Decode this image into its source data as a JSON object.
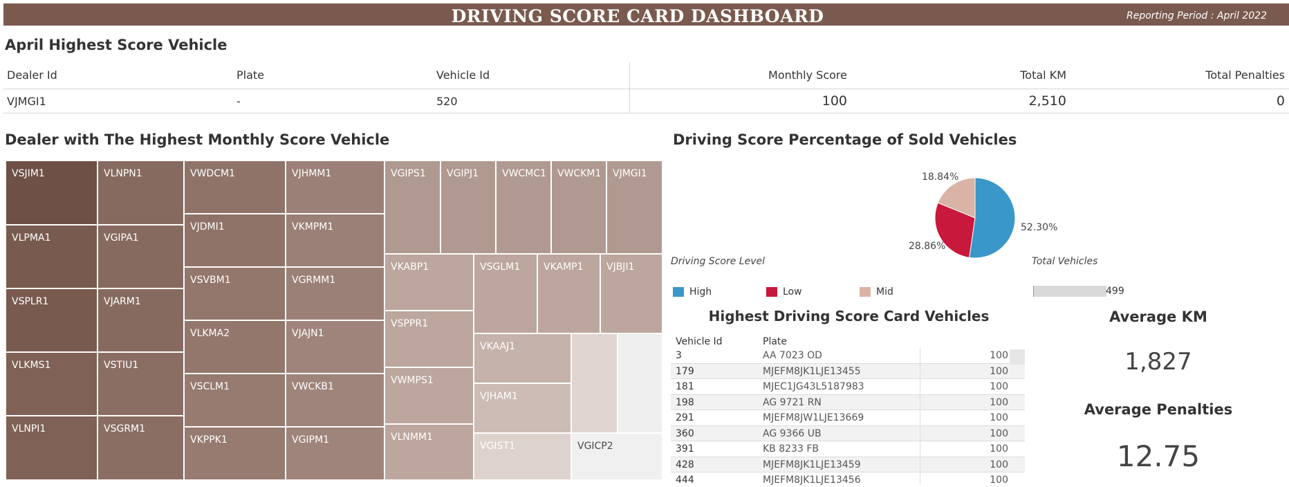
{
  "header": {
    "title": "DRIVING SCORE CARD DASHBOARD",
    "period": "Reporting Period : April 2022"
  },
  "top_section": {
    "title": "April Highest Score Vehicle",
    "columns": [
      "Dealer Id",
      "Plate",
      "Vehicle Id",
      "Monthly Score",
      "Total KM",
      "Total Penalties"
    ],
    "row": [
      "VJMGI1",
      "-",
      "520",
      "100",
      "2,510",
      "0"
    ]
  },
  "treemap": {
    "title": "Dealer with The Highest Monthly Score Vehicle",
    "labels": [
      "VSJIM1",
      "VLPMA1",
      "VSPLR1",
      "VLKMS1",
      "VLNPI1",
      "VLNPN1",
      "VGIPA1",
      "VJARM1",
      "VSTIU1",
      "VSGRM1",
      "VWDCM1",
      "VJDMI1",
      "VSVBM1",
      "VLKMA2",
      "VSCLM1",
      "VKPPK1",
      "VJHMM1",
      "VKMPM1",
      "VGRMM1",
      "VJAJN1",
      "VWCKB1",
      "VGIPM1",
      "VGIPS1",
      "VGIPJ1",
      "VWCMC1",
      "VWCKM1",
      "VJMGI1",
      "VKABP1",
      "VSGLM1",
      "VKAMP1",
      "VJBJI1",
      "VSPPR1",
      "VWMPS1",
      "VLNMM1",
      "VKAAJ1",
      "VJHAM1",
      "VGIST1",
      "VGICP2"
    ]
  },
  "chart_data": {
    "type": "pie",
    "title": "Driving Score Percentage of Sold Vehicles",
    "legend_title": "Driving Score Level",
    "slices": [
      {
        "name": "High",
        "value": 52.3,
        "label": "52.30%",
        "color": "#3a97c9"
      },
      {
        "name": "Low",
        "value": 28.86,
        "label": "28.86%",
        "color": "#c8183c"
      },
      {
        "name": "Mid",
        "value": 18.84,
        "label": "18.84%",
        "color": "#d9b3a6"
      }
    ]
  },
  "total_vehicles": {
    "title": "Total Vehicles",
    "value": "499"
  },
  "vehicle_list": {
    "title": "Highest Driving Score Card Vehicles",
    "columns": [
      "Vehicle Id",
      "Plate"
    ],
    "rows": [
      [
        "3",
        "AA 7023 OD",
        "100"
      ],
      [
        "179",
        "MJEFM8JK1LJE13455",
        "100"
      ],
      [
        "181",
        "MJEC1JG43L5187983",
        "100"
      ],
      [
        "198",
        "AG 9721 RN",
        "100"
      ],
      [
        "291",
        "MJEFM8JW1LJE13669",
        "100"
      ],
      [
        "360",
        "AG 9366 UB",
        "100"
      ],
      [
        "391",
        "KB 8233 FB",
        "100"
      ],
      [
        "428",
        "MJEFM8JK1LJE13459",
        "100"
      ],
      [
        "444",
        "MJEFM8JK1LJE13456",
        "100"
      ]
    ]
  },
  "kpis": {
    "avg_km_title": "Average KM",
    "avg_km": "1,827",
    "avg_pen_title": "Average Penalties",
    "avg_pen": "12.75"
  },
  "colors": {
    "brown": "#7a5a4e",
    "high": "#3a97c9",
    "low": "#c8183c",
    "mid": "#d9b3a6"
  }
}
